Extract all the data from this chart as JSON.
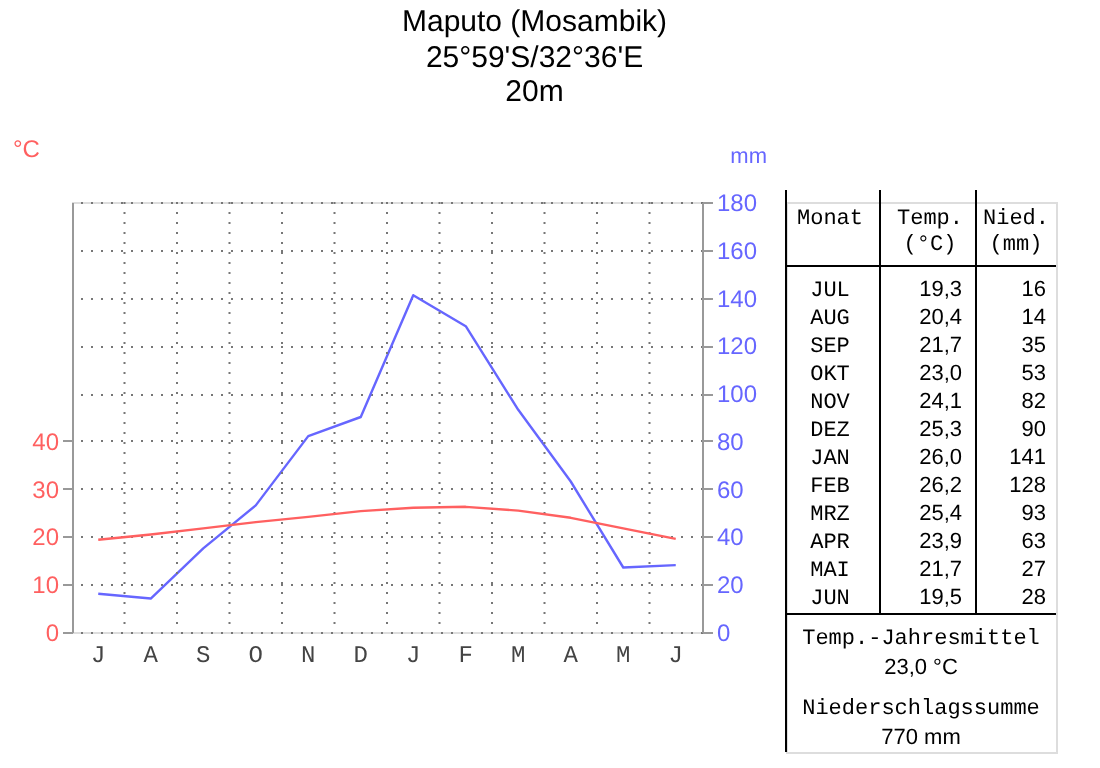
{
  "chart_data": {
    "type": "line",
    "title": "Maputo (Mosambik)",
    "subtitle": "25°59'S/32°36'E\n20m",
    "ylabel": "°C",
    "y2label": "mm",
    "categories": [
      "J",
      "A",
      "S",
      "O",
      "N",
      "D",
      "J",
      "F",
      "M",
      "A",
      "M",
      "J"
    ],
    "series": [
      {
        "color": "#ff6060",
        "values": [
          19.3,
          20.4,
          21.7,
          23.0,
          24.1,
          25.3,
          26.0,
          26.2,
          25.4,
          23.9,
          21.7,
          19.5
        ]
      },
      {
        "color": "#6666ff",
        "axis": "y2",
        "values": [
          16,
          14,
          35,
          53,
          82,
          90,
          141,
          128,
          93,
          63,
          27,
          28
        ]
      }
    ],
    "ylim": [
      0,
      90
    ],
    "yticks": [
      0,
      10,
      20,
      30,
      40
    ],
    "y2lim": [
      0,
      180
    ],
    "y2ticks": [
      0,
      20,
      40,
      60,
      80,
      100,
      120,
      140,
      160,
      180
    ],
    "grid": true,
    "annotations": [
      "Monat",
      "Temp. (°C)",
      "Nied. (mm)",
      "JUL",
      "19,3",
      "16",
      "AUG",
      "20,4",
      "14",
      "SEP",
      "21,7",
      "35",
      "OKT",
      "23,0",
      "53",
      "NOV",
      "24,1",
      "82",
      "DEZ",
      "25,3",
      "90",
      "JAN",
      "26,0",
      "141",
      "FEB",
      "26,2",
      "128",
      "MRZ",
      "25,4",
      "93",
      "APR",
      "23,9",
      "63",
      "MAI",
      "21,7",
      "27",
      "JUN",
      "19,5",
      "28",
      "Temp.-Jahresmittel",
      "23,0 °C",
      "Niederschlagssumme",
      "770 mm"
    ]
  }
}
